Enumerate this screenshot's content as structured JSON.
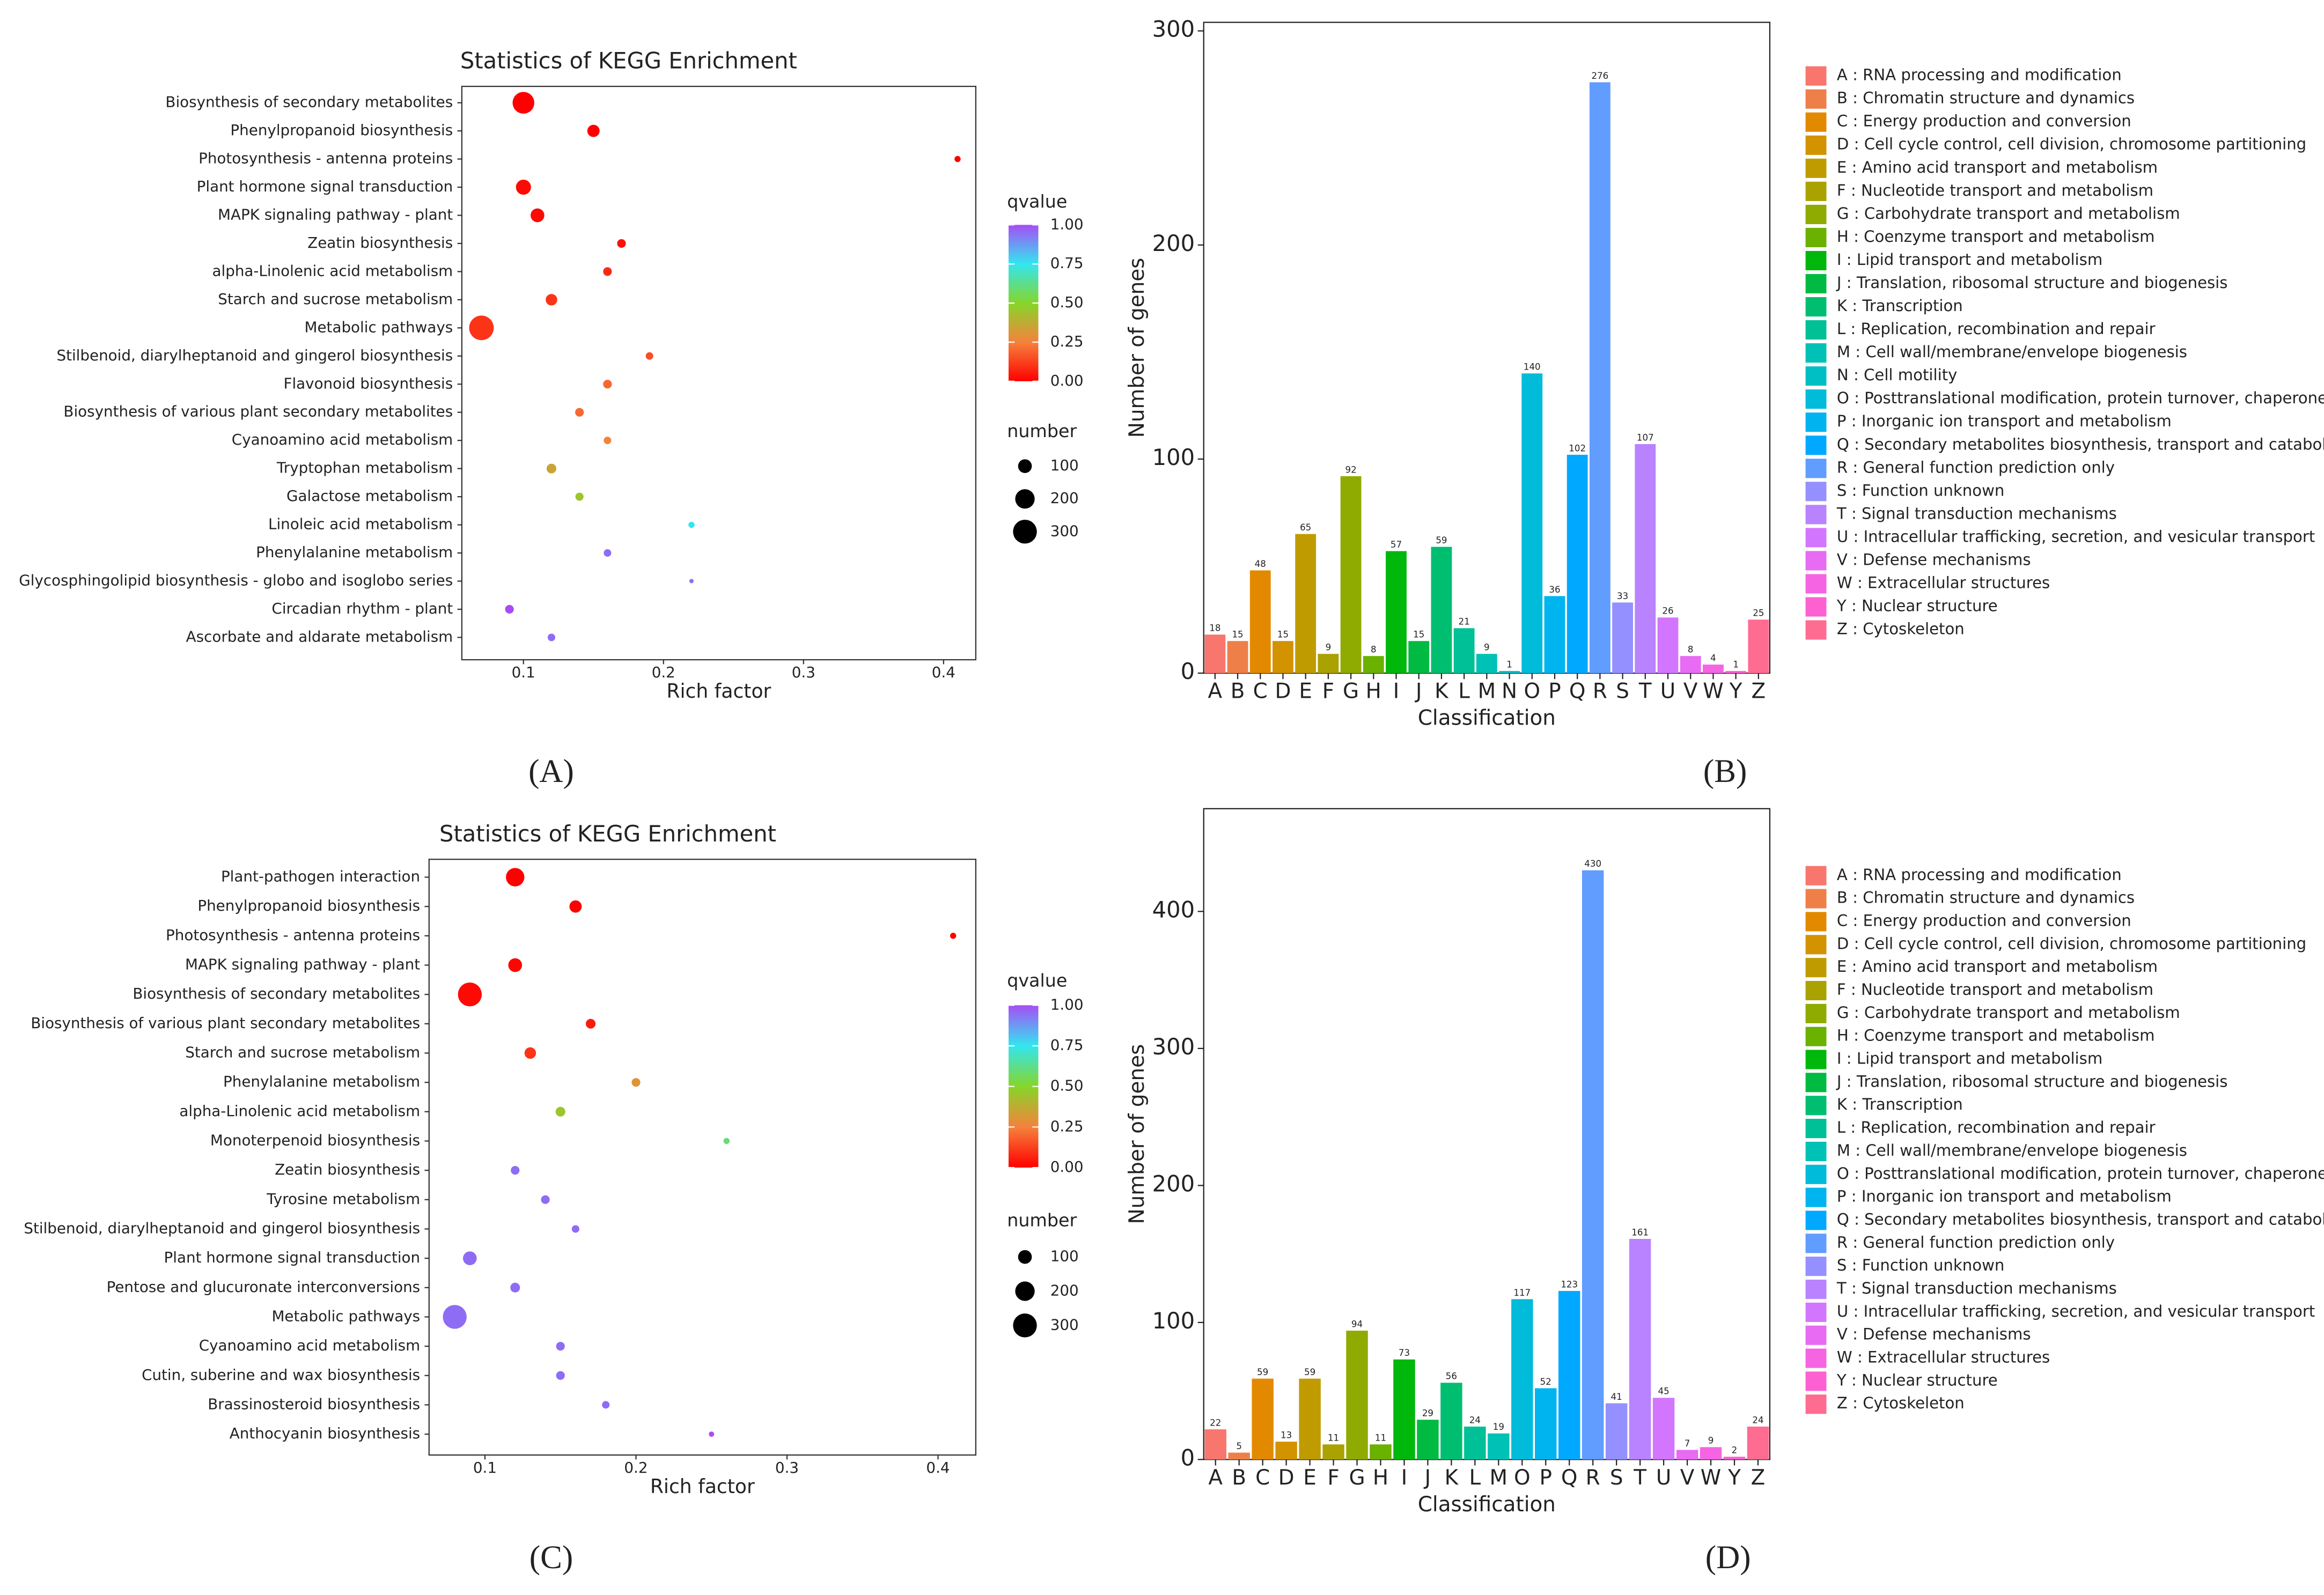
{
  "chart_data": [
    {
      "type": "bubble",
      "panel": "(A)",
      "title": "Statistics of KEGG Enrichment",
      "categories": [
        "Biosynthesis of secondary metabolites",
        "Phenylpropanoid biosynthesis",
        "Photosynthesis - antenna proteins",
        "Plant hormone signal transduction",
        "MAPK signaling pathway - plant",
        "Zeatin biosynthesis",
        "alpha-Linolenic acid metabolism",
        "Starch and sucrose metabolism",
        "Metabolic pathways",
        "Stilbenoid, diarylheptanoid and gingerol biosynthesis",
        "Flavonoid biosynthesis",
        "Biosynthesis of various plant secondary metabolites",
        "Cyanoamino acid metabolism",
        "Tryptophan metabolism",
        "Galactose metabolism",
        "Linoleic acid metabolism",
        "Phenylalanine metabolism",
        "Glycosphingolipid biosynthesis - globo and isoglobo series",
        "Circadian rhythm - plant",
        "Ascorbate and aldarate metabolism"
      ],
      "x": [
        0.1,
        0.15,
        0.41,
        0.1,
        0.11,
        0.17,
        0.16,
        0.12,
        0.07,
        0.19,
        0.16,
        0.14,
        0.16,
        0.12,
        0.14,
        0.22,
        0.16,
        0.22,
        0.09,
        0.12
      ],
      "sizes": [
        250,
        80,
        20,
        120,
        100,
        40,
        40,
        70,
        320,
        30,
        40,
        40,
        30,
        50,
        35,
        20,
        30,
        10,
        40,
        30
      ],
      "qvalues": [
        0.0,
        0.0,
        0.0,
        0.02,
        0.02,
        0.03,
        0.08,
        0.1,
        0.1,
        0.15,
        0.2,
        0.2,
        0.25,
        0.35,
        0.45,
        0.75,
        0.95,
        0.95,
        1.0,
        0.95
      ],
      "xlabel": "Rich factor",
      "xlim": [
        0.056,
        0.423
      ],
      "xticks": [
        0.1,
        0.2,
        0.3,
        0.4
      ],
      "color_legend_title": "qvalue",
      "color_ticks": [
        {
          "value": 0,
          "label": "0.00"
        },
        {
          "value": 0.25,
          "label": "0.25"
        },
        {
          "value": 0.5,
          "label": "0.50"
        },
        {
          "value": 0.75,
          "label": "0.75"
        },
        {
          "value": 1,
          "label": "1.00"
        }
      ],
      "colorscale": [
        "#ff0000",
        "#f5823c",
        "#86d62a",
        "#33e6f0",
        "#a64df5"
      ],
      "size_legend_title": "number",
      "size_ticks": [
        100,
        200,
        300
      ]
    },
    {
      "type": "bar",
      "panel": "(B)",
      "categories": [
        "A",
        "B",
        "C",
        "D",
        "E",
        "F",
        "G",
        "H",
        "I",
        "J",
        "K",
        "L",
        "M",
        "N",
        "O",
        "P",
        "Q",
        "R",
        "S",
        "T",
        "U",
        "V",
        "W",
        "Y",
        "Z"
      ],
      "values": [
        18,
        15,
        48,
        15,
        65,
        9,
        92,
        8,
        57,
        15,
        59,
        21,
        9,
        1,
        140,
        36,
        102,
        276,
        33,
        107,
        26,
        8,
        4,
        1,
        25
      ],
      "colors": [
        "#F8766D",
        "#EF7F49",
        "#E38900",
        "#D39200",
        "#C09B00",
        "#AAA200",
        "#8FAA00",
        "#6BB100",
        "#00B70C",
        "#00BA42",
        "#00BE70",
        "#00C097",
        "#00C1B5",
        "#00BFC4",
        "#00BBDA",
        "#00B4EF",
        "#00A9FF",
        "#619CFF",
        "#9590FF",
        "#B983FF",
        "#D376FF",
        "#E76BF3",
        "#F564E3",
        "#FD61D1",
        "#FF6C91"
      ],
      "legend": [
        "A : RNA processing and modification",
        "B : Chromatin structure and dynamics",
        "C : Energy production and conversion",
        "D : Cell cycle control, cell division, chromosome partitioning",
        "E : Amino acid transport and metabolism",
        "F : Nucleotide transport and metabolism",
        "G : Carbohydrate transport and metabolism",
        "H : Coenzyme transport and metabolism",
        "I : Lipid transport and metabolism",
        "J : Translation, ribosomal structure and biogenesis",
        "K : Transcription",
        "L : Replication, recombination and repair",
        "M : Cell wall/membrane/envelope biogenesis",
        "N : Cell motility",
        "O : Posttranslational modification, protein turnover, chaperones",
        "P : Inorganic ion transport and metabolism",
        "Q : Secondary metabolites biosynthesis, transport and catabolism",
        "R : General function prediction only",
        "S : Function unknown",
        "T : Signal transduction mechanisms",
        "U : Intracellular trafficking, secretion, and vesicular transport",
        "V : Defense mechanisms",
        "W : Extracellular structures",
        "Y : Nuclear structure",
        "Z : Cytoskeleton"
      ],
      "xlabel": "Classification",
      "ylabel": "Number of genes",
      "ylim": [
        0,
        304
      ],
      "yticks": [
        0,
        100,
        200,
        300
      ]
    },
    {
      "type": "bubble",
      "panel": "(C)",
      "title": "Statistics of KEGG Enrichment",
      "categories": [
        "Plant-pathogen interaction",
        "Phenylpropanoid biosynthesis",
        "Photosynthesis - antenna proteins",
        "MAPK signaling pathway - plant",
        "Biosynthesis of secondary metabolites",
        "Biosynthesis of various plant secondary metabolites",
        "Starch and sucrose metabolism",
        "Phenylalanine metabolism",
        "alpha-Linolenic acid metabolism",
        "Monoterpenoid biosynthesis",
        "Zeatin biosynthesis",
        "Tyrosine metabolism",
        "Stilbenoid, diarylheptanoid and gingerol biosynthesis",
        "Plant hormone signal transduction",
        "Pentose and glucuronate interconversions",
        "Metabolic pathways",
        "Cyanoamino acid metabolism",
        "Cutin, suberine and wax biosynthesis",
        "Brassinosteroid biosynthesis",
        "Anthocyanin biosynthesis"
      ],
      "x": [
        0.12,
        0.16,
        0.41,
        0.12,
        0.09,
        0.17,
        0.13,
        0.2,
        0.15,
        0.26,
        0.12,
        0.14,
        0.16,
        0.09,
        0.12,
        0.08,
        0.15,
        0.15,
        0.18,
        0.25
      ],
      "sizes": [
        180,
        80,
        20,
        100,
        300,
        50,
        70,
        40,
        50,
        20,
        40,
        40,
        30,
        100,
        50,
        300,
        40,
        40,
        30,
        15
      ],
      "qvalues": [
        0.0,
        0.0,
        0.0,
        0.01,
        0.02,
        0.05,
        0.1,
        0.3,
        0.45,
        0.6,
        0.95,
        0.95,
        0.95,
        0.95,
        0.95,
        0.95,
        0.95,
        0.95,
        0.95,
        1.0
      ],
      "xlabel": "Rich factor",
      "xlim": [
        0.063,
        0.425
      ],
      "xticks": [
        0.1,
        0.2,
        0.3,
        0.4
      ],
      "color_legend_title": "qvalue",
      "color_ticks": [
        {
          "value": 0,
          "label": "0.00"
        },
        {
          "value": 0.25,
          "label": "0.25"
        },
        {
          "value": 0.5,
          "label": "0.50"
        },
        {
          "value": 0.75,
          "label": "0.75"
        },
        {
          "value": 1,
          "label": "1.00"
        }
      ],
      "colorscale": [
        "#ff0000",
        "#f5823c",
        "#86d62a",
        "#33e6f0",
        "#a64df5"
      ],
      "size_legend_title": "number",
      "size_ticks": [
        100,
        200,
        300
      ]
    },
    {
      "type": "bar",
      "panel": "(D)",
      "categories": [
        "A",
        "B",
        "C",
        "D",
        "E",
        "F",
        "G",
        "H",
        "I",
        "J",
        "K",
        "L",
        "M",
        "O",
        "P",
        "Q",
        "R",
        "S",
        "T",
        "U",
        "V",
        "W",
        "Y",
        "Z"
      ],
      "values": [
        22,
        5,
        59,
        13,
        59,
        11,
        94,
        11,
        73,
        29,
        56,
        24,
        19,
        117,
        52,
        123,
        430,
        41,
        161,
        45,
        7,
        9,
        2,
        24
      ],
      "colors": [
        "#F8766D",
        "#EF7F49",
        "#E38900",
        "#D39200",
        "#C09B00",
        "#AAA200",
        "#8FAA00",
        "#6BB100",
        "#00B70C",
        "#00BA42",
        "#00BE70",
        "#00C097",
        "#00C1B5",
        "#00BBDA",
        "#00B4EF",
        "#00A9FF",
        "#619CFF",
        "#9590FF",
        "#B983FF",
        "#D376FF",
        "#E76BF3",
        "#F564E3",
        "#FD61D1",
        "#FF6C91"
      ],
      "legend": [
        "A : RNA processing and modification",
        "B : Chromatin structure and dynamics",
        "C : Energy production and conversion",
        "D : Cell cycle control, cell division, chromosome partitioning",
        "E : Amino acid transport and metabolism",
        "F : Nucleotide transport and metabolism",
        "G : Carbohydrate transport and metabolism",
        "H : Coenzyme transport and metabolism",
        "I : Lipid transport and metabolism",
        "J : Translation, ribosomal structure and biogenesis",
        "K : Transcription",
        "L : Replication, recombination and repair",
        "M : Cell wall/membrane/envelope biogenesis",
        "O : Posttranslational modification, protein turnover, chaperones",
        "P : Inorganic ion transport and metabolism",
        "Q : Secondary metabolites biosynthesis, transport and catabolism",
        "R : General function prediction only",
        "S : Function unknown",
        "T : Signal transduction mechanisms",
        "U : Intracellular trafficking, secretion, and vesicular transport",
        "V : Defense mechanisms",
        "W : Extracellular structures",
        "Y : Nuclear structure",
        "Z : Cytoskeleton"
      ],
      "xlabel": "Classification",
      "ylabel": "Number of genes",
      "ylim": [
        0,
        475
      ],
      "yticks": [
        0,
        100,
        200,
        300,
        400
      ]
    }
  ]
}
